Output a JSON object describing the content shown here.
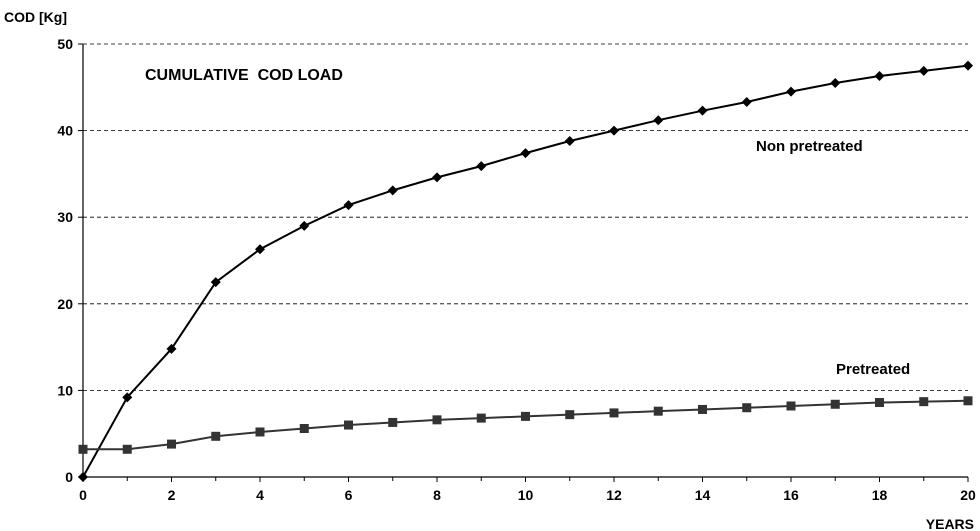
{
  "chart_data": {
    "type": "line",
    "title": "CUMULATIVE  COD LOAD",
    "ylabel": "COD [Kg]",
    "xlabel": "YEARS",
    "xlim": [
      0,
      20
    ],
    "ylim": [
      0,
      50
    ],
    "x_ticks": [
      "0",
      "2",
      "4",
      "6",
      "8",
      "10",
      "12",
      "14",
      "16",
      "18",
      "20"
    ],
    "y_ticks": [
      "0",
      "10",
      "20",
      "30",
      "40",
      "50"
    ],
    "grid": "horizontal dashed",
    "x": [
      0,
      1,
      2,
      3,
      4,
      5,
      6,
      7,
      8,
      9,
      10,
      11,
      12,
      13,
      14,
      15,
      16,
      17,
      18,
      19,
      20
    ],
    "series": [
      {
        "name": "Non pretreated",
        "marker": "diamond",
        "color": "#000000",
        "values": [
          0,
          9.2,
          14.8,
          22.5,
          26.3,
          29.0,
          31.4,
          33.1,
          34.6,
          35.9,
          37.4,
          38.8,
          40.0,
          41.2,
          42.3,
          43.3,
          44.5,
          45.5,
          46.3,
          46.9,
          47.5
        ]
      },
      {
        "name": "Pretreated",
        "marker": "square",
        "color": "#333333",
        "values": [
          3.2,
          3.2,
          3.8,
          4.7,
          5.2,
          5.6,
          6.0,
          6.3,
          6.6,
          6.8,
          7.0,
          7.2,
          7.4,
          7.6,
          7.8,
          8.0,
          8.2,
          8.4,
          8.6,
          8.7,
          8.8
        ]
      }
    ]
  }
}
